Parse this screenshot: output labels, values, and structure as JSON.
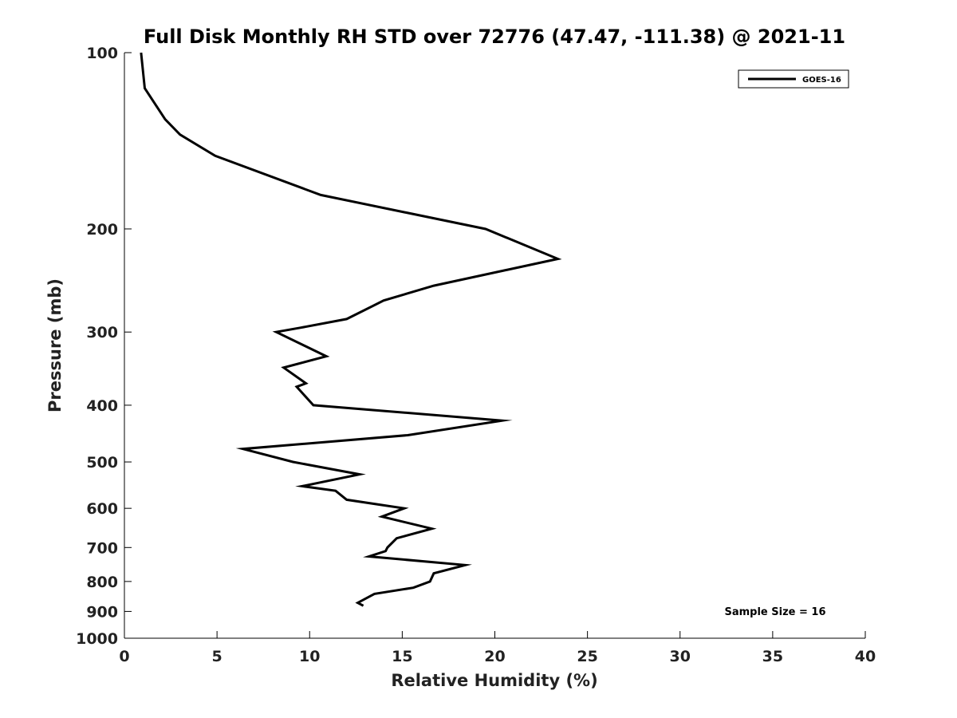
{
  "chart_data": {
    "type": "line",
    "title": "Full Disk Monthly RH STD over 72776 (47.47, -111.38) @ 2021-11",
    "xlabel": "Relative Humidity (%)",
    "ylabel": "Pressure (mb)",
    "xlim": [
      0,
      40
    ],
    "ylim": [
      1000,
      100
    ],
    "y_scale": "log",
    "y_inverted": true,
    "grid": false,
    "legend_position": "top-right",
    "x_ticks": [
      "0",
      "5",
      "10",
      "15",
      "20",
      "25",
      "30",
      "35",
      "40"
    ],
    "y_ticks": [
      "100",
      "200",
      "300",
      "400",
      "500",
      "600",
      "700",
      "800",
      "900",
      "1000"
    ],
    "annotation": "Sample Size = 16",
    "series": [
      {
        "name": "GOES-16",
        "color": "#000000",
        "points": [
          {
            "x": 0.9,
            "y": 100
          },
          {
            "x": 1.1,
            "y": 115
          },
          {
            "x": 2.2,
            "y": 130
          },
          {
            "x": 3.0,
            "y": 138
          },
          {
            "x": 4.9,
            "y": 150
          },
          {
            "x": 10.6,
            "y": 175
          },
          {
            "x": 19.5,
            "y": 200
          },
          {
            "x": 23.4,
            "y": 225
          },
          {
            "x": 16.7,
            "y": 250
          },
          {
            "x": 14.0,
            "y": 265
          },
          {
            "x": 12.0,
            "y": 285
          },
          {
            "x": 9.5,
            "y": 295
          },
          {
            "x": 8.2,
            "y": 300
          },
          {
            "x": 10.9,
            "y": 330
          },
          {
            "x": 8.6,
            "y": 345
          },
          {
            "x": 9.8,
            "y": 367
          },
          {
            "x": 9.3,
            "y": 372
          },
          {
            "x": 10.2,
            "y": 400
          },
          {
            "x": 20.4,
            "y": 425
          },
          {
            "x": 15.3,
            "y": 450
          },
          {
            "x": 6.4,
            "y": 475
          },
          {
            "x": 9.1,
            "y": 500
          },
          {
            "x": 12.7,
            "y": 525
          },
          {
            "x": 9.6,
            "y": 550
          },
          {
            "x": 11.4,
            "y": 560
          },
          {
            "x": 12.0,
            "y": 580
          },
          {
            "x": 15.1,
            "y": 600
          },
          {
            "x": 13.9,
            "y": 620
          },
          {
            "x": 16.6,
            "y": 650
          },
          {
            "x": 14.7,
            "y": 675
          },
          {
            "x": 14.2,
            "y": 700
          },
          {
            "x": 14.1,
            "y": 710
          },
          {
            "x": 13.2,
            "y": 725
          },
          {
            "x": 18.4,
            "y": 750
          },
          {
            "x": 16.7,
            "y": 775
          },
          {
            "x": 16.5,
            "y": 800
          },
          {
            "x": 15.6,
            "y": 820
          },
          {
            "x": 13.5,
            "y": 840
          },
          {
            "x": 12.6,
            "y": 870
          },
          {
            "x": 12.9,
            "y": 880
          }
        ]
      }
    ]
  }
}
